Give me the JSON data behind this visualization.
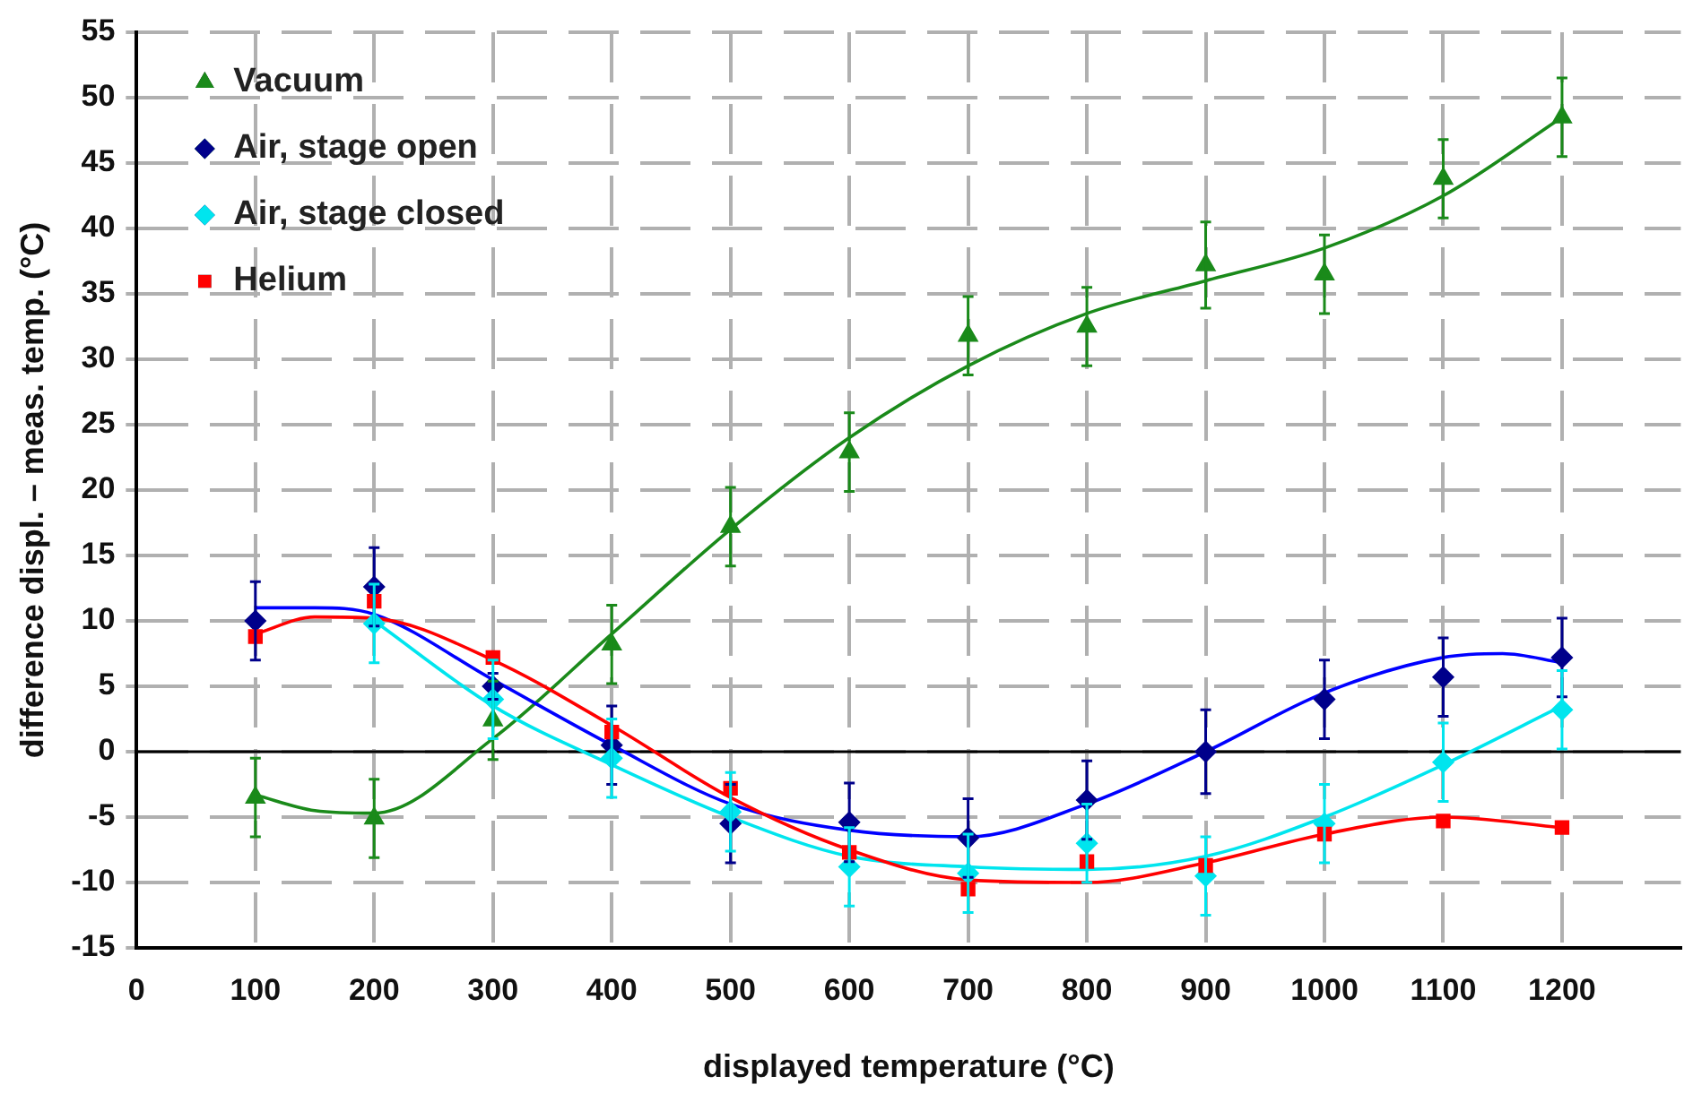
{
  "chart_data": {
    "type": "scatter",
    "xlabel": "displayed temperature (°C)",
    "ylabel": "difference displ. – meas. temp. (°C)",
    "xlim": [
      0,
      1300
    ],
    "xticks": [
      0,
      100,
      200,
      300,
      400,
      500,
      600,
      700,
      800,
      900,
      1000,
      1100,
      1200
    ],
    "ylim": [
      -15,
      55
    ],
    "yticks": [
      -15,
      -10,
      -5,
      0,
      5,
      10,
      15,
      20,
      25,
      30,
      35,
      40,
      45,
      50,
      55
    ],
    "grid": true,
    "legend": "top left",
    "ref_lines": [
      {
        "axis": "y",
        "value": 0,
        "color": "#000000"
      }
    ],
    "series": [
      {
        "name": "Vacuum",
        "type": "scatter",
        "marker": "triangle",
        "color": "#1a8a1a",
        "x": [
          100,
          200,
          300,
          400,
          500,
          600,
          700,
          800,
          900,
          1000,
          1100,
          1200
        ],
        "values": [
          -3.5,
          -5.1,
          2.4,
          8.2,
          17.2,
          22.9,
          31.8,
          32.5,
          37.2,
          36.5,
          43.8,
          48.5
        ],
        "errors": [
          3,
          3,
          3,
          3,
          3,
          3,
          3,
          3,
          3.3,
          3,
          3,
          3
        ]
      },
      {
        "name": "Air, stage open",
        "type": "scatter",
        "marker": "diamond",
        "color": "#00008b",
        "x": [
          100,
          200,
          300,
          400,
          500,
          600,
          700,
          800,
          900,
          1000,
          1100,
          1200
        ],
        "values": [
          10,
          12.6,
          5,
          0.5,
          -5.5,
          -5.4,
          -6.6,
          -3.7,
          0,
          4,
          5.7,
          7.2
        ],
        "errors": [
          3,
          3,
          1,
          3,
          3,
          3,
          3,
          3,
          3.2,
          3,
          3,
          3
        ]
      },
      {
        "name": "Air, stage closed",
        "type": "scatter",
        "marker": "diamond",
        "color": "#00e5ee",
        "x": [
          200,
          300,
          400,
          500,
          600,
          700,
          800,
          900,
          1000,
          1100,
          1200
        ],
        "values": [
          9.8,
          4,
          -0.5,
          -4.6,
          -8.8,
          -9.3,
          -7,
          -9.5,
          -5.5,
          -0.8,
          3.2
        ],
        "errors": [
          3,
          3,
          3,
          3,
          3,
          3,
          3,
          3,
          3,
          3,
          3
        ]
      },
      {
        "name": "Helium",
        "type": "scatter",
        "marker": "square",
        "color": "#ff0000",
        "x": [
          100,
          200,
          300,
          400,
          500,
          600,
          700,
          800,
          900,
          1000,
          1100,
          1200
        ],
        "values": [
          8.8,
          11.5,
          7.2,
          1.5,
          -2.8,
          -7.7,
          -10.5,
          -8.4,
          -8.7,
          -6.3,
          -5.3,
          -5.8
        ]
      },
      {
        "type": "line",
        "marker": "none",
        "color": "#1a8a1a",
        "x": [
          100,
          150,
          200,
          300,
          400,
          500,
          600,
          700,
          800,
          900,
          1000,
          1100,
          1200
        ],
        "values": [
          -3.3,
          -4.5,
          -4.7,
          1,
          9,
          17,
          24,
          29.5,
          33.5,
          36,
          38.5,
          42.5,
          48.5
        ]
      },
      {
        "type": "line",
        "marker": "none",
        "color": "#0000ff",
        "x": [
          100,
          150,
          200,
          300,
          400,
          500,
          600,
          700,
          800,
          900,
          1000,
          1100,
          1150,
          1200
        ],
        "values": [
          11,
          11,
          10.5,
          5.5,
          0.5,
          -4,
          -6,
          -6.5,
          -4,
          0,
          4.5,
          7.2,
          7.5,
          6.8
        ]
      },
      {
        "type": "line",
        "marker": "none",
        "color": "#00e5ee",
        "x": [
          200,
          300,
          400,
          500,
          600,
          700,
          800,
          900,
          1000,
          1100,
          1200
        ],
        "values": [
          10,
          3.5,
          -1,
          -5,
          -8,
          -8.8,
          -9,
          -8,
          -5,
          -1,
          3.5
        ]
      },
      {
        "type": "line",
        "marker": "none",
        "color": "#ff0000",
        "x": [
          100,
          150,
          200,
          300,
          400,
          500,
          600,
          700,
          800,
          900,
          1000,
          1100,
          1200
        ],
        "values": [
          9,
          10.3,
          10.2,
          7,
          2,
          -3.5,
          -7.5,
          -9.8,
          -10,
          -8.5,
          -6.3,
          -5,
          -5.8
        ]
      }
    ]
  }
}
